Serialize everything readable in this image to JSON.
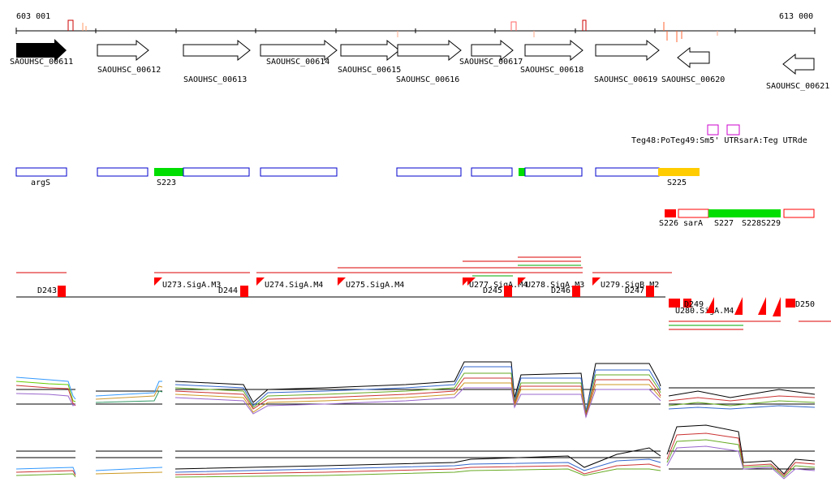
{
  "ruler": {
    "start_label": "603 001",
    "end_label": "613 000"
  },
  "genes": [
    {
      "name": "SAOUHSC_00611",
      "strand": "+",
      "filled": true
    },
    {
      "name": "SAOUHSC_00612",
      "strand": "+",
      "filled": false
    },
    {
      "name": "SAOUHSC_00613",
      "strand": "+",
      "filled": false
    },
    {
      "name": "SAOUHSC_00614",
      "strand": "+",
      "filled": false
    },
    {
      "name": "SAOUHSC_00615",
      "strand": "+",
      "filled": false
    },
    {
      "name": "SAOUHSC_00616",
      "strand": "+",
      "filled": false
    },
    {
      "name": "SAOUHSC_00617",
      "strand": "+",
      "filled": false
    },
    {
      "name": "SAOUHSC_00618",
      "strand": "+",
      "filled": false
    },
    {
      "name": "SAOUHSC_00619",
      "strand": "+",
      "filled": false
    },
    {
      "name": "SAOUHSC_00620",
      "strand": "-",
      "filled": false
    },
    {
      "name": "SAOUHSC_00621",
      "strand": "-",
      "filled": false
    }
  ],
  "annot_text": "Teg48:PoTeg49:Sm5' UTRsarA:Teg UTRde",
  "features": [
    {
      "label": "argS"
    },
    {
      "label": "S223"
    },
    {
      "label": "S225"
    },
    {
      "label": "S226"
    },
    {
      "label": "sarA"
    },
    {
      "label": "S227"
    },
    {
      "label": "S228"
    },
    {
      "label": "S229"
    }
  ],
  "promoters": [
    {
      "label": "D243"
    },
    {
      "label": "U273.SigA.M3"
    },
    {
      "label": "D244"
    },
    {
      "label": "U274.SigA.M4"
    },
    {
      "label": "U275.SigA.M4"
    },
    {
      "label": "U277.SigA.M4"
    },
    {
      "label": "D245"
    },
    {
      "label": "U278.SigA.M3"
    },
    {
      "label": "D246"
    },
    {
      "label": "U279.SigB.M2"
    },
    {
      "label": "D247"
    },
    {
      "label": "D250"
    },
    {
      "label": "D249"
    },
    {
      "label": "U280.SigA.M4"
    }
  ],
  "colors": {
    "gene_fill": "#000000",
    "feature_blue": "#0000cc",
    "feature_green": "#00dd00",
    "feature_orange": "#ffcc00",
    "feature_red": "#ff0000",
    "magenta": "#cc00cc"
  }
}
